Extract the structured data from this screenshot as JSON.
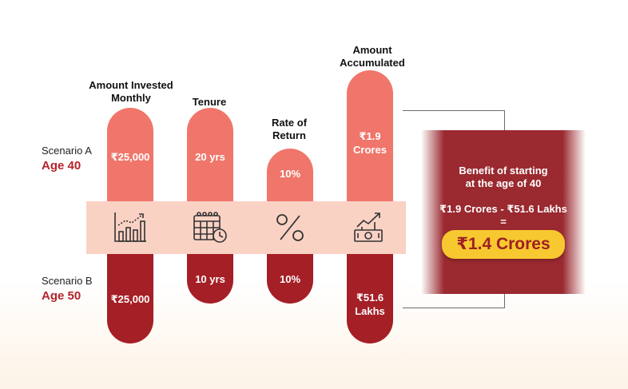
{
  "columns": [
    {
      "header": "Amount Invested Monthly",
      "a": "₹25,000",
      "b": "₹25,000",
      "icon": "bar-chart-icon"
    },
    {
      "header": "Tenure",
      "a": "20 yrs",
      "b": "10 yrs",
      "icon": "calendar-clock-icon"
    },
    {
      "header": "Rate of Return",
      "a": "10%",
      "b": "10%",
      "icon": "percent-icon"
    },
    {
      "header": "Amount Accumulated",
      "a": "₹1.9 Crores",
      "b": "₹51.6 Lakhs",
      "icon": "money-growth-icon"
    }
  ],
  "scenarios": {
    "a": {
      "label": "Scenario A",
      "age": "Age 40"
    },
    "b": {
      "label": "Scenario B",
      "age": "Age 50"
    }
  },
  "benefit": {
    "title_line1": "Benefit of starting",
    "title_line2": "at the age of 40",
    "formula": "₹1.9 Crores - ₹51.6 Lakhs",
    "equals": "=",
    "result": "₹1.4 Crores"
  },
  "colors": {
    "light_pill": "#f0766b",
    "dark_pill": "#a51f26",
    "band": "#f9d2c4",
    "accent_yellow": "#f7c82f"
  }
}
